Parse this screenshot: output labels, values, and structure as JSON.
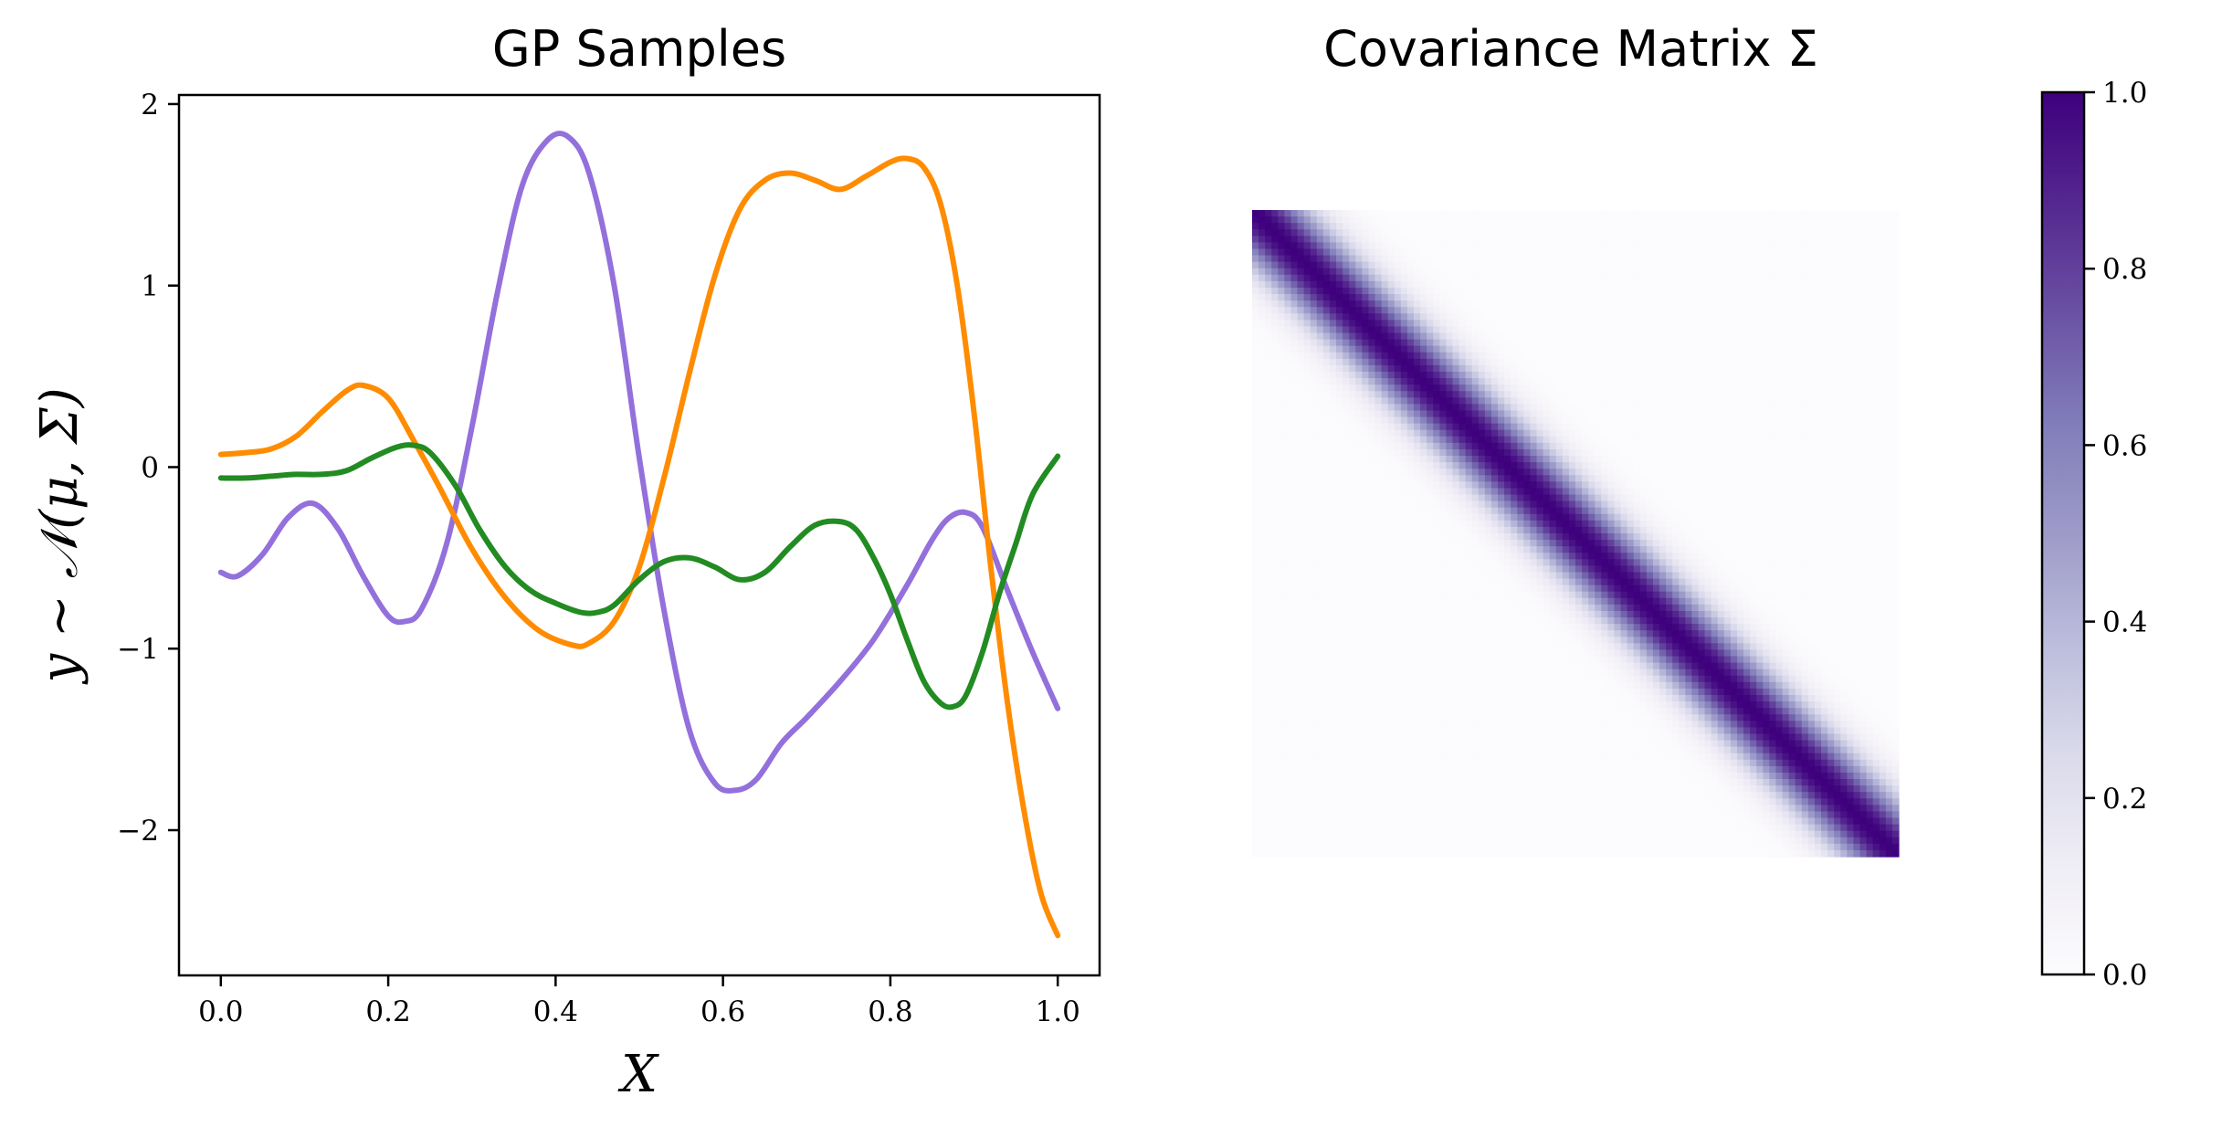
{
  "chart_data": [
    {
      "type": "line",
      "title": "GP Samples",
      "xlabel": "X",
      "ylabel": "y ∼ 𝒩(μ, Σ)",
      "xlim": [
        -0.05,
        1.05
      ],
      "ylim": [
        -2.8,
        2.05
      ],
      "xticks": [
        0.0,
        0.2,
        0.4,
        0.6,
        0.8,
        1.0
      ],
      "xtick_labels": [
        "0.0",
        "0.2",
        "0.4",
        "0.6",
        "0.8",
        "1.0"
      ],
      "yticks": [
        -2,
        -1,
        0,
        1,
        2
      ],
      "ytick_labels": [
        "−2",
        "−1",
        "0",
        "1",
        "2"
      ],
      "grid": false,
      "series": [
        {
          "color": "#9370db",
          "x": [
            0.0,
            0.02,
            0.05,
            0.08,
            0.11,
            0.14,
            0.17,
            0.2,
            0.22,
            0.24,
            0.27,
            0.3,
            0.33,
            0.36,
            0.39,
            0.415,
            0.44,
            0.47,
            0.5,
            0.53,
            0.56,
            0.59,
            0.615,
            0.64,
            0.67,
            0.7,
            0.74,
            0.78,
            0.82,
            0.85,
            0.87,
            0.89,
            0.91,
            0.94,
            0.97,
            1.0
          ],
          "y": [
            -0.58,
            -0.6,
            -0.48,
            -0.28,
            -0.2,
            -0.34,
            -0.6,
            -0.82,
            -0.85,
            -0.78,
            -0.42,
            0.22,
            0.95,
            1.55,
            1.8,
            1.82,
            1.62,
            1.0,
            0.05,
            -0.8,
            -1.45,
            -1.74,
            -1.78,
            -1.72,
            -1.52,
            -1.38,
            -1.18,
            -0.95,
            -0.65,
            -0.4,
            -0.28,
            -0.25,
            -0.33,
            -0.68,
            -1.02,
            -1.33
          ]
        },
        {
          "color": "#ff8c00",
          "x": [
            0.0,
            0.03,
            0.06,
            0.09,
            0.12,
            0.15,
            0.17,
            0.2,
            0.23,
            0.26,
            0.3,
            0.34,
            0.38,
            0.42,
            0.44,
            0.47,
            0.5,
            0.53,
            0.56,
            0.59,
            0.62,
            0.65,
            0.68,
            0.71,
            0.74,
            0.77,
            0.8,
            0.82,
            0.84,
            0.86,
            0.88,
            0.9,
            0.92,
            0.94,
            0.96,
            0.98,
            1.0
          ],
          "y": [
            0.07,
            0.08,
            0.1,
            0.17,
            0.3,
            0.42,
            0.45,
            0.38,
            0.15,
            -0.1,
            -0.45,
            -0.72,
            -0.9,
            -0.98,
            -0.97,
            -0.85,
            -0.55,
            -0.05,
            0.52,
            1.05,
            1.42,
            1.58,
            1.62,
            1.58,
            1.53,
            1.6,
            1.68,
            1.7,
            1.65,
            1.45,
            1.0,
            0.3,
            -0.55,
            -1.3,
            -1.9,
            -2.35,
            -2.58
          ]
        },
        {
          "color": "#228b22",
          "x": [
            0.0,
            0.03,
            0.06,
            0.09,
            0.12,
            0.15,
            0.18,
            0.21,
            0.23,
            0.25,
            0.28,
            0.31,
            0.34,
            0.37,
            0.4,
            0.43,
            0.45,
            0.47,
            0.5,
            0.53,
            0.56,
            0.59,
            0.62,
            0.65,
            0.68,
            0.71,
            0.74,
            0.76,
            0.78,
            0.8,
            0.82,
            0.84,
            0.86,
            0.875,
            0.89,
            0.91,
            0.93,
            0.95,
            0.97,
            1.0
          ],
          "y": [
            -0.06,
            -0.06,
            -0.05,
            -0.04,
            -0.04,
            -0.02,
            0.05,
            0.11,
            0.12,
            0.08,
            -0.1,
            -0.35,
            -0.55,
            -0.68,
            -0.75,
            -0.8,
            -0.8,
            -0.76,
            -0.62,
            -0.52,
            -0.5,
            -0.55,
            -0.62,
            -0.58,
            -0.44,
            -0.32,
            -0.3,
            -0.35,
            -0.5,
            -0.7,
            -0.95,
            -1.18,
            -1.3,
            -1.32,
            -1.26,
            -1.02,
            -0.7,
            -0.42,
            -0.15,
            0.06
          ]
        }
      ]
    },
    {
      "type": "heatmap",
      "title": "Covariance Matrix Σ",
      "colormap": "Purples",
      "n": 100,
      "kernel": "rbf",
      "lengthscale": 0.06,
      "vmin": 0.0,
      "vmax": 1.0,
      "axes_visible": false,
      "colorbar": {
        "ticks": [
          0.0,
          0.2,
          0.4,
          0.6,
          0.8,
          1.0
        ],
        "tick_labels": [
          "0.0",
          "0.2",
          "0.4",
          "0.6",
          "0.8",
          "1.0"
        ]
      }
    }
  ]
}
